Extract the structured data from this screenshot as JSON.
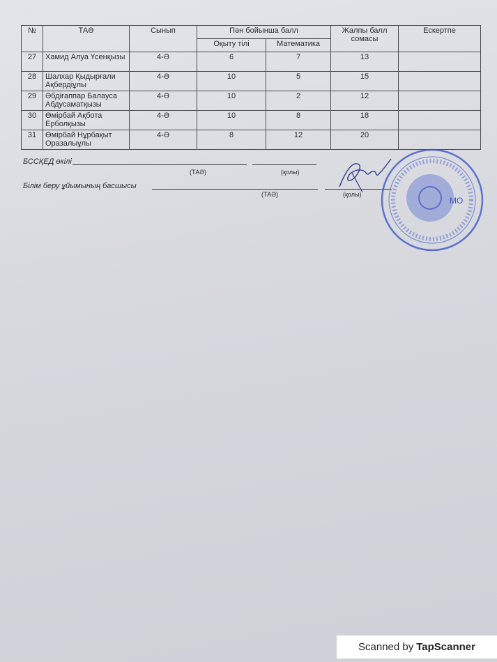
{
  "table": {
    "headers": {
      "num": "№",
      "name": "ТАӘ",
      "class": "Сынып",
      "subject_group": "Пән бойынша балл",
      "subject1": "Оқыту тілі",
      "subject2": "Математика",
      "total": "Жалпы балл сомасы",
      "note": "Ескертпе"
    },
    "rows": [
      {
        "num": "27",
        "name": "Хамид Алуа Үсенқызы",
        "class": "4-Ә",
        "lang": "6",
        "math": "7",
        "total": "13",
        "note": ""
      },
      {
        "num": "28",
        "name": "Шалхар Қыдырғали Ақбердіұлы",
        "class": "4-Ә",
        "lang": "10",
        "math": "5",
        "total": "15",
        "note": ""
      },
      {
        "num": "29",
        "name": "Әбдіғаппар Балауса Абдусаматқызы",
        "class": "4-Ә",
        "lang": "10",
        "math": "2",
        "total": "12",
        "note": ""
      },
      {
        "num": "30",
        "name": "Өмірбай Ақбота Ерболқызы",
        "class": "4-Ә",
        "lang": "10",
        "math": "8",
        "total": "18",
        "note": ""
      },
      {
        "num": "31",
        "name": "Өмірбай Нұрбақыт Оразалыұлы",
        "class": "4-Ә",
        "lang": "8",
        "math": "12",
        "total": "20",
        "note": ""
      }
    ]
  },
  "signatures": {
    "rep_label": "БССҚЕД өкілі",
    "head_label": "Білім беру ұйымының басшысы",
    "name_caption": "(ТАӘ)",
    "sign_caption": "(қолы)",
    "stamp_mark": "МО"
  },
  "stamp_color": "#3b56c8",
  "watermark": {
    "prefix": "Scanned by",
    "brand": "TapScanner"
  }
}
